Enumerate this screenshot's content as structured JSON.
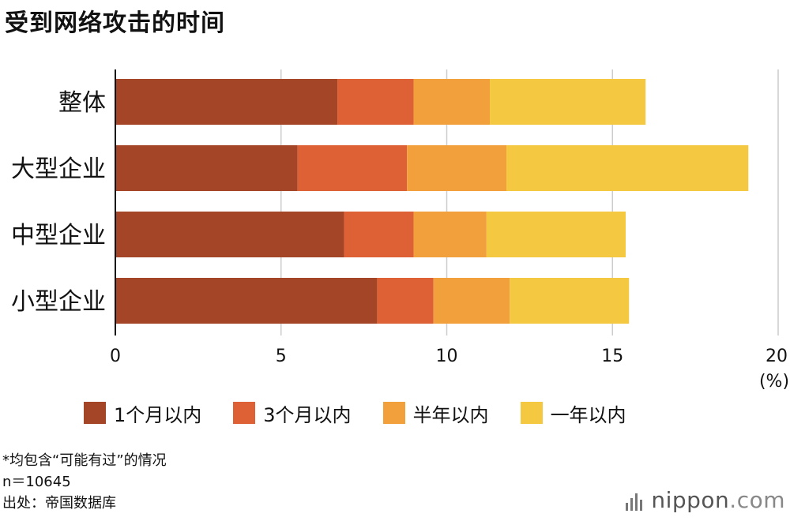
{
  "header": {
    "title": "受到网络攻击的时间"
  },
  "chart_data": {
    "type": "bar",
    "orientation": "horizontal",
    "stacked": true,
    "categories": [
      "整体",
      "大型企业",
      "中型企业",
      "小型企业"
    ],
    "series": [
      {
        "name": "1个月以内",
        "color": "#A44528",
        "values": [
          6.7,
          5.5,
          6.9,
          7.9
        ]
      },
      {
        "name": "3个月以内",
        "color": "#DD6134",
        "values": [
          2.3,
          3.3,
          2.1,
          1.7
        ]
      },
      {
        "name": "半年以内",
        "color": "#F2A03C",
        "values": [
          2.3,
          3.0,
          2.2,
          2.3
        ]
      },
      {
        "name": "一年以内",
        "color": "#F5C842",
        "values": [
          4.7,
          7.3,
          4.2,
          3.6
        ]
      }
    ],
    "xlim": [
      0,
      20
    ],
    "xticks": [
      0,
      5,
      10,
      15,
      20
    ],
    "xunit": "(%)",
    "grid": true,
    "legend_position": "bottom"
  },
  "notes": [
    "*均包含“可能有过”的情况",
    "n＝10645",
    "出处：帝国数据库"
  ],
  "logo": {
    "name": "nippon",
    "dot": ".",
    "domain": "com"
  }
}
